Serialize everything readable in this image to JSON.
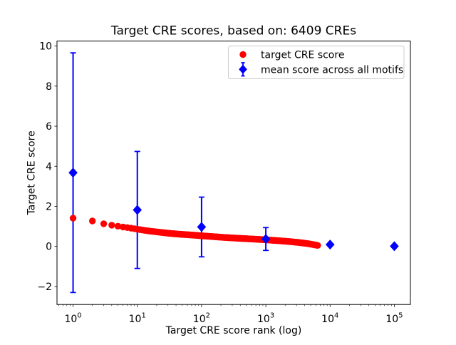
{
  "chart_data": {
    "type": "scatter",
    "title": "Target CRE scores, based on: 6409 CREs",
    "xlabel": "Target CRE score rank (log)",
    "ylabel": "Target CRE score",
    "xscale": "log",
    "x_log_range": [
      -0.25,
      5.25
    ],
    "ylim": [
      -2.9,
      10.25
    ],
    "x_tick_base": "10",
    "x_major_tick_exponents": [
      0,
      1,
      2,
      3,
      4,
      5
    ],
    "y_ticks": [
      -2,
      0,
      2,
      4,
      6,
      8,
      10
    ],
    "grid": false,
    "background": "#ffffff",
    "series": [
      {
        "name": "target CRE score",
        "type": "scatter",
        "marker": "circle",
        "color": "#ff0000",
        "n_points_depicted": 6409,
        "points_note": "sampled control points [rank, score]; full depicted series spans ranks 1..6409 forming a dense band",
        "points": [
          [
            1,
            1.41
          ],
          [
            2,
            1.27
          ],
          [
            3,
            1.13
          ],
          [
            4,
            1.06
          ],
          [
            5,
            1.01
          ],
          [
            6,
            0.97
          ],
          [
            7,
            0.94
          ],
          [
            8,
            0.91
          ],
          [
            10,
            0.86
          ],
          [
            13,
            0.8
          ],
          [
            17,
            0.75
          ],
          [
            22,
            0.71
          ],
          [
            30,
            0.66
          ],
          [
            45,
            0.61
          ],
          [
            70,
            0.57
          ],
          [
            100,
            0.53
          ],
          [
            150,
            0.49
          ],
          [
            220,
            0.45
          ],
          [
            320,
            0.42
          ],
          [
            470,
            0.39
          ],
          [
            700,
            0.36
          ],
          [
            1000,
            0.33
          ],
          [
            1500,
            0.29
          ],
          [
            2200,
            0.25
          ],
          [
            3200,
            0.2
          ],
          [
            4500,
            0.14
          ],
          [
            5500,
            0.09
          ],
          [
            6409,
            0.05
          ]
        ]
      },
      {
        "name": "mean score across all motifs",
        "type": "errorbar",
        "marker": "diamond",
        "color": "#0000ff",
        "points": [
          {
            "x": 1,
            "y": 3.68,
            "err": 5.98
          },
          {
            "x": 10,
            "y": 1.82,
            "err": 2.92
          },
          {
            "x": 100,
            "y": 0.97,
            "err": 1.49
          },
          {
            "x": 1000,
            "y": 0.37,
            "err": 0.57
          },
          {
            "x": 10000,
            "y": 0.09,
            "err": 0.02
          },
          {
            "x": 100000,
            "y": 0.01,
            "err": 0.01
          }
        ]
      }
    ],
    "legend": {
      "position": "upper right",
      "entries": [
        {
          "label": "target CRE score",
          "marker": "circle",
          "color": "#ff0000"
        },
        {
          "label": "mean score across all motifs",
          "marker": "diamond-errorbar",
          "color": "#0000ff"
        }
      ]
    }
  }
}
